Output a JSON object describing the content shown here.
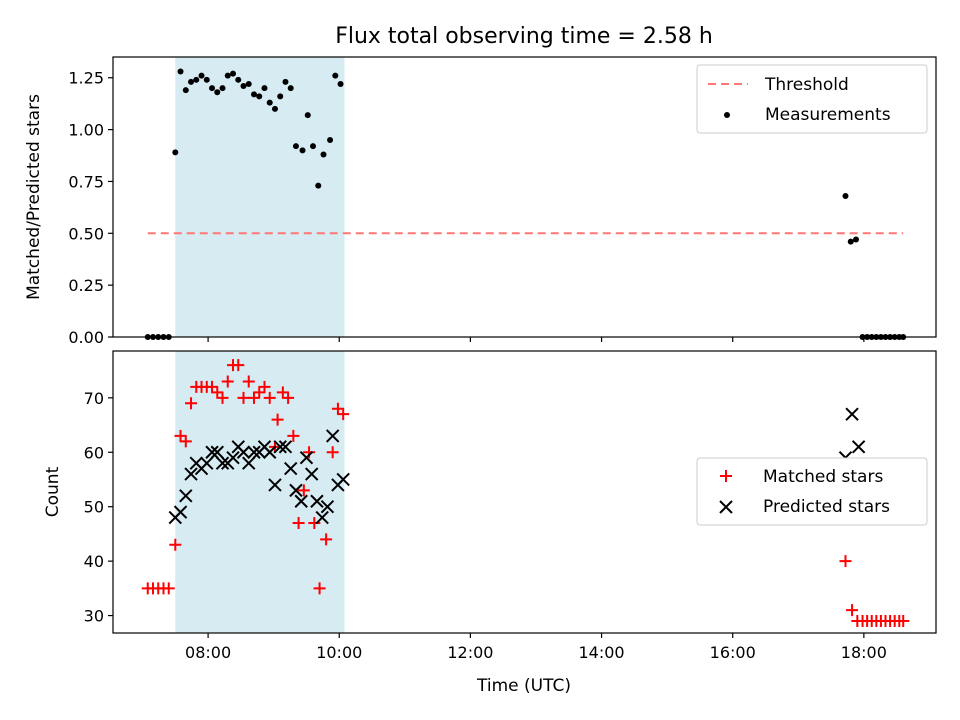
{
  "chart_data": {
    "title": "Flux total observing time = 2.58 h",
    "xlabel": "Time (UTC)",
    "x_unit": "hours UTC",
    "xlim": [
      6.55,
      19.1
    ],
    "x_ticks": [
      {
        "value": 8,
        "label": "08:00"
      },
      {
        "value": 10,
        "label": "10:00"
      },
      {
        "value": 12,
        "label": "12:00"
      },
      {
        "value": 14,
        "label": "14:00"
      },
      {
        "value": 16,
        "label": "16:00"
      },
      {
        "value": 18,
        "label": "18:00"
      }
    ],
    "shaded_interval": {
      "x": [
        7.5,
        10.08
      ],
      "color": "#add8e6"
    },
    "panels": [
      {
        "type": "scatter",
        "ylabel": "Matched/Predicted stars",
        "ylim": [
          0,
          1.35
        ],
        "y_ticks": [
          {
            "value": 0.0,
            "label": "0.00"
          },
          {
            "value": 0.25,
            "label": "0.25"
          },
          {
            "value": 0.5,
            "label": "0.50"
          },
          {
            "value": 0.75,
            "label": "0.75"
          },
          {
            "value": 1.0,
            "label": "1.00"
          },
          {
            "value": 1.25,
            "label": "1.25"
          }
        ],
        "legend_position": "top-right",
        "threshold": {
          "name": "Threshold",
          "y": 0.5,
          "x_range": [
            7.08,
            18.6
          ],
          "color": "#ff7777"
        },
        "series": [
          {
            "name": "Measurements",
            "marker": "dot",
            "color": "#000000",
            "points": [
              [
                7.08,
                0.0
              ],
              [
                7.16,
                0.0
              ],
              [
                7.24,
                0.0
              ],
              [
                7.32,
                0.0
              ],
              [
                7.4,
                0.0
              ],
              [
                7.5,
                0.89
              ],
              [
                7.58,
                1.28
              ],
              [
                7.66,
                1.19
              ],
              [
                7.74,
                1.23
              ],
              [
                7.82,
                1.24
              ],
              [
                7.9,
                1.26
              ],
              [
                7.98,
                1.24
              ],
              [
                8.06,
                1.2
              ],
              [
                8.14,
                1.18
              ],
              [
                8.22,
                1.2
              ],
              [
                8.3,
                1.26
              ],
              [
                8.38,
                1.27
              ],
              [
                8.46,
                1.24
              ],
              [
                8.54,
                1.21
              ],
              [
                8.62,
                1.22
              ],
              [
                8.7,
                1.17
              ],
              [
                8.78,
                1.16
              ],
              [
                8.86,
                1.2
              ],
              [
                8.94,
                1.13
              ],
              [
                9.02,
                1.1
              ],
              [
                9.1,
                1.16
              ],
              [
                9.18,
                1.23
              ],
              [
                9.26,
                1.2
              ],
              [
                9.34,
                0.92
              ],
              [
                9.44,
                0.9
              ],
              [
                9.52,
                1.07
              ],
              [
                9.6,
                0.92
              ],
              [
                9.68,
                0.73
              ],
              [
                9.76,
                0.88
              ],
              [
                9.86,
                0.95
              ],
              [
                9.94,
                1.26
              ],
              [
                10.02,
                1.22
              ],
              [
                17.72,
                0.68
              ],
              [
                17.8,
                0.46
              ],
              [
                17.88,
                0.47
              ],
              [
                17.98,
                0.0
              ],
              [
                18.05,
                0.0
              ],
              [
                18.12,
                0.0
              ],
              [
                18.19,
                0.0
              ],
              [
                18.26,
                0.0
              ],
              [
                18.33,
                0.0
              ],
              [
                18.4,
                0.0
              ],
              [
                18.47,
                0.0
              ],
              [
                18.54,
                0.0
              ],
              [
                18.6,
                0.0
              ]
            ]
          }
        ]
      },
      {
        "type": "scatter",
        "ylabel": "Count",
        "ylim": [
          26.8,
          78.6
        ],
        "y_ticks": [
          {
            "value": 30,
            "label": "30"
          },
          {
            "value": 40,
            "label": "40"
          },
          {
            "value": 50,
            "label": "50"
          },
          {
            "value": 60,
            "label": "60"
          },
          {
            "value": 70,
            "label": "70"
          }
        ],
        "legend_position": "center-right",
        "series": [
          {
            "name": "Matched stars",
            "marker": "plus",
            "color": "#ff0000",
            "points": [
              [
                7.08,
                35
              ],
              [
                7.16,
                35
              ],
              [
                7.24,
                35
              ],
              [
                7.32,
                35
              ],
              [
                7.4,
                35
              ],
              [
                7.5,
                43
              ],
              [
                7.58,
                63
              ],
              [
                7.66,
                62
              ],
              [
                7.74,
                69
              ],
              [
                7.82,
                72
              ],
              [
                7.9,
                72
              ],
              [
                7.98,
                72
              ],
              [
                8.06,
                72
              ],
              [
                8.14,
                71
              ],
              [
                8.22,
                70
              ],
              [
                8.3,
                73
              ],
              [
                8.38,
                76
              ],
              [
                8.46,
                76
              ],
              [
                8.54,
                70
              ],
              [
                8.62,
                73
              ],
              [
                8.7,
                70
              ],
              [
                8.78,
                71
              ],
              [
                8.86,
                72
              ],
              [
                8.94,
                70
              ],
              [
                9.02,
                61
              ],
              [
                9.06,
                66
              ],
              [
                9.14,
                71
              ],
              [
                9.22,
                70
              ],
              [
                9.3,
                63
              ],
              [
                9.38,
                47
              ],
              [
                9.46,
                53
              ],
              [
                9.54,
                60
              ],
              [
                9.62,
                47
              ],
              [
                9.7,
                35
              ],
              [
                9.8,
                44
              ],
              [
                9.9,
                60
              ],
              [
                9.98,
                68
              ],
              [
                10.06,
                67
              ],
              [
                17.72,
                40
              ],
              [
                17.82,
                31
              ],
              [
                17.9,
                29
              ],
              [
                17.98,
                29
              ],
              [
                18.05,
                29
              ],
              [
                18.12,
                29
              ],
              [
                18.19,
                29
              ],
              [
                18.26,
                29
              ],
              [
                18.33,
                29
              ],
              [
                18.4,
                29
              ],
              [
                18.47,
                29
              ],
              [
                18.54,
                29
              ],
              [
                18.6,
                29
              ]
            ]
          },
          {
            "name": "Predicted stars",
            "marker": "x",
            "color": "#000000",
            "points": [
              [
                7.5,
                48
              ],
              [
                7.58,
                49
              ],
              [
                7.66,
                52
              ],
              [
                7.74,
                56
              ],
              [
                7.82,
                58
              ],
              [
                7.9,
                57
              ],
              [
                7.98,
                58
              ],
              [
                8.06,
                60
              ],
              [
                8.14,
                60
              ],
              [
                8.22,
                58
              ],
              [
                8.3,
                58
              ],
              [
                8.38,
                59
              ],
              [
                8.46,
                61
              ],
              [
                8.54,
                60
              ],
              [
                8.62,
                58
              ],
              [
                8.7,
                60
              ],
              [
                8.78,
                60
              ],
              [
                8.86,
                61
              ],
              [
                8.94,
                60
              ],
              [
                9.02,
                54
              ],
              [
                9.1,
                61
              ],
              [
                9.18,
                61
              ],
              [
                9.26,
                57
              ],
              [
                9.34,
                53
              ],
              [
                9.42,
                51
              ],
              [
                9.5,
                59
              ],
              [
                9.58,
                56
              ],
              [
                9.66,
                51
              ],
              [
                9.74,
                48
              ],
              [
                9.82,
                50
              ],
              [
                9.9,
                63
              ],
              [
                9.98,
                54
              ],
              [
                10.06,
                55
              ],
              [
                17.72,
                59
              ],
              [
                17.82,
                67
              ],
              [
                17.92,
                61
              ]
            ]
          }
        ]
      }
    ]
  }
}
